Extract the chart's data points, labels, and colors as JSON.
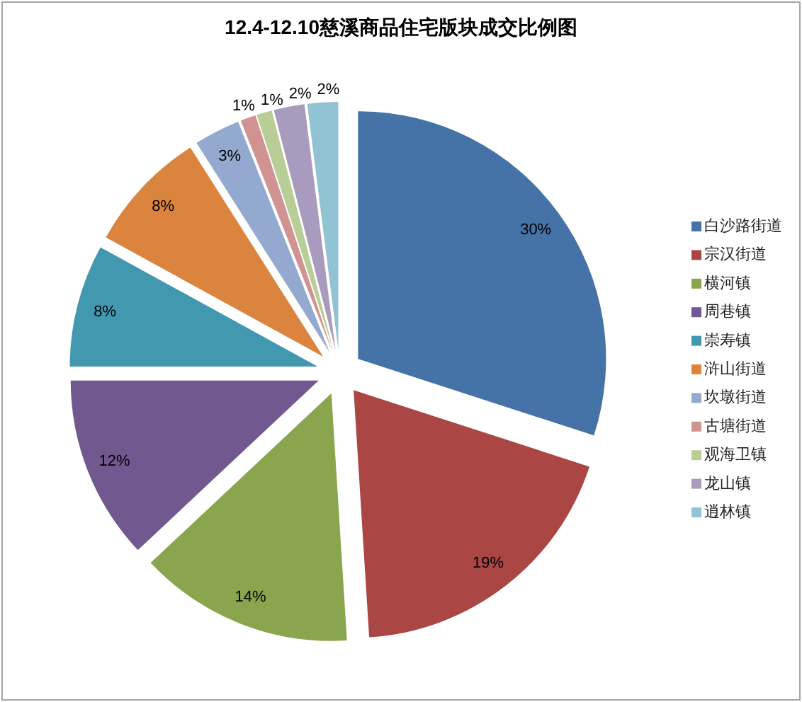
{
  "chart_data": {
    "type": "pie",
    "title": "12.4-12.10慈溪商品住宅版块成交比例图",
    "categories": [
      "白沙路街道",
      "宗汉街道",
      "横河镇",
      "周巷镇",
      "崇寿镇",
      "浒山街道",
      "坎墩街道",
      "古塘街道",
      "观海卫镇",
      "龙山镇",
      "逍林镇"
    ],
    "values": [
      30,
      19,
      14,
      12,
      8,
      8,
      3,
      1,
      1,
      2,
      2
    ],
    "value_labels": [
      "30%",
      "19%",
      "14%",
      "12%",
      "8%",
      "8%",
      "3%",
      "1%",
      "1%",
      "2%",
      "2%"
    ],
    "colors": [
      "#4572a7",
      "#aa4643",
      "#89a54e",
      "#71588f",
      "#4198af",
      "#db843d",
      "#93a9cf",
      "#d19392",
      "#b9cd96",
      "#a99bbd",
      "#92c3d4"
    ],
    "legend": "right"
  }
}
